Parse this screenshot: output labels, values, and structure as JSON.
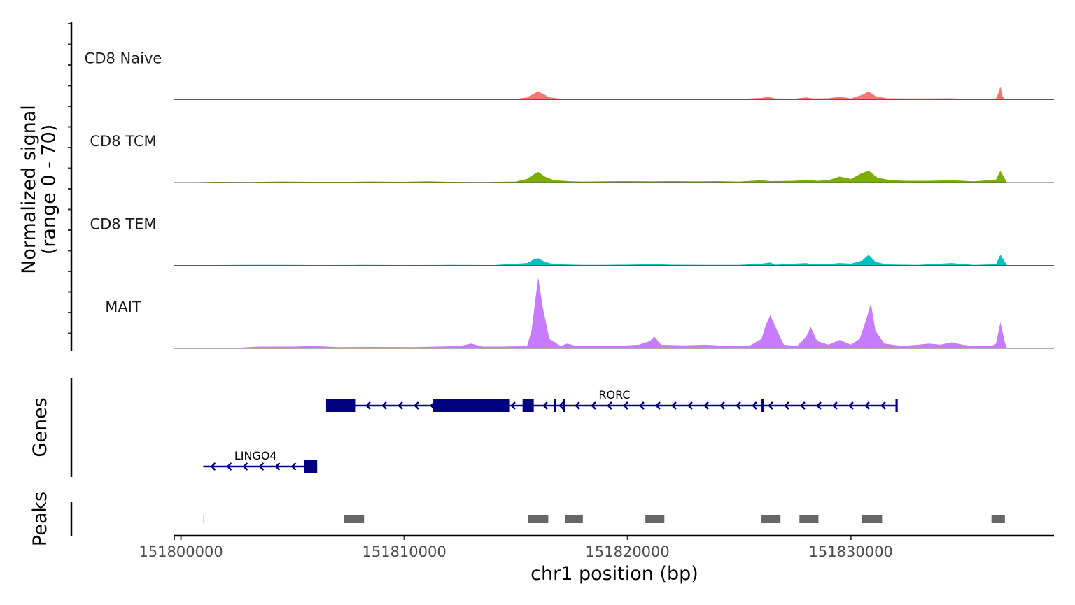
{
  "chart_data": [
    {
      "type": "area",
      "ylabel": "Normalized signal\n(range 0 - 70)",
      "ylim": [
        0,
        70
      ],
      "xlim": [
        151799700,
        151839100
      ],
      "grid": false,
      "legend": "none",
      "series": [
        {
          "name": "CD8 Naive",
          "color": "#F8766D",
          "points": [
            [
              151800000,
              0
            ],
            [
              151801500,
              0.6
            ],
            [
              151803000,
              0.4
            ],
            [
              151804500,
              0.6
            ],
            [
              151806000,
              0.5
            ],
            [
              151807500,
              0.6
            ],
            [
              151808300,
              0.8
            ],
            [
              151810000,
              0.4
            ],
            [
              151812000,
              0.5
            ],
            [
              151813500,
              0.4
            ],
            [
              151815000,
              0.6
            ],
            [
              151815500,
              2
            ],
            [
              151815800,
              5
            ],
            [
              151816000,
              7
            ],
            [
              151816200,
              5
            ],
            [
              151816500,
              2
            ],
            [
              151817000,
              0.8
            ],
            [
              151818000,
              0.6
            ],
            [
              151819000,
              0.6
            ],
            [
              151820000,
              0.8
            ],
            [
              151821000,
              0.6
            ],
            [
              151822000,
              0.6
            ],
            [
              151823000,
              0.5
            ],
            [
              151824000,
              0.6
            ],
            [
              151825000,
              0.6
            ],
            [
              151826000,
              1.5
            ],
            [
              151826300,
              2.5
            ],
            [
              151826600,
              1
            ],
            [
              151827500,
              0.8
            ],
            [
              151828000,
              2
            ],
            [
              151828300,
              1
            ],
            [
              151829000,
              1.2
            ],
            [
              151829500,
              2.5
            ],
            [
              151830000,
              1
            ],
            [
              151830500,
              4
            ],
            [
              151830800,
              7
            ],
            [
              151831100,
              3
            ],
            [
              151831600,
              1.2
            ],
            [
              151832500,
              1
            ],
            [
              151833500,
              1
            ],
            [
              151834500,
              1.2
            ],
            [
              151835500,
              0.5
            ],
            [
              151836500,
              1
            ],
            [
              151836600,
              5
            ],
            [
              151836700,
              11
            ],
            [
              151836800,
              3
            ],
            [
              151836900,
              0
            ]
          ]
        },
        {
          "name": "CD8 TCM",
          "color": "#7CAE00",
          "points": [
            [
              151800000,
              0
            ],
            [
              151801500,
              0.6
            ],
            [
              151803000,
              0.5
            ],
            [
              151804500,
              0.8
            ],
            [
              151806000,
              0.6
            ],
            [
              151807500,
              0.6
            ],
            [
              151808500,
              0.8
            ],
            [
              151810000,
              0.6
            ],
            [
              151811000,
              1
            ],
            [
              151812000,
              0.6
            ],
            [
              151813500,
              0.5
            ],
            [
              151815000,
              0.8
            ],
            [
              151815500,
              3
            ],
            [
              151815800,
              7
            ],
            [
              151816000,
              9
            ],
            [
              151816300,
              5
            ],
            [
              151816700,
              2
            ],
            [
              151817500,
              1
            ],
            [
              151818000,
              0.8
            ],
            [
              151819000,
              1
            ],
            [
              151820000,
              1.2
            ],
            [
              151821000,
              1
            ],
            [
              151822000,
              1.2
            ],
            [
              151823000,
              1
            ],
            [
              151824000,
              1.2
            ],
            [
              151825000,
              0.8
            ],
            [
              151826000,
              2
            ],
            [
              151826400,
              1.2
            ],
            [
              151827500,
              1.5
            ],
            [
              151828000,
              2.5
            ],
            [
              151828500,
              1.5
            ],
            [
              151829000,
              2
            ],
            [
              151829500,
              5
            ],
            [
              151830000,
              3
            ],
            [
              151830500,
              8
            ],
            [
              151830800,
              10
            ],
            [
              151831200,
              4
            ],
            [
              151831800,
              2
            ],
            [
              151832500,
              1.5
            ],
            [
              151833500,
              1.5
            ],
            [
              151834500,
              2
            ],
            [
              151835500,
              1
            ],
            [
              151836500,
              2.5
            ],
            [
              151836700,
              10
            ],
            [
              151836900,
              3
            ],
            [
              151837000,
              0
            ]
          ]
        },
        {
          "name": "CD8 TEM",
          "color": "#00BFC4",
          "points": [
            [
              151800000,
              0
            ],
            [
              151801500,
              0.3
            ],
            [
              151803000,
              0.5
            ],
            [
              151804500,
              0.4
            ],
            [
              151806000,
              0.3
            ],
            [
              151808000,
              0.4
            ],
            [
              151810000,
              0.3
            ],
            [
              151812000,
              0.4
            ],
            [
              151814000,
              0.3
            ],
            [
              151815500,
              2
            ],
            [
              151815800,
              5
            ],
            [
              151816000,
              6
            ],
            [
              151816300,
              3
            ],
            [
              151816700,
              1
            ],
            [
              151818000,
              0.5
            ],
            [
              151819000,
              0.4
            ],
            [
              151820500,
              0.8
            ],
            [
              151821000,
              1.2
            ],
            [
              151822000,
              0.6
            ],
            [
              151823500,
              0.5
            ],
            [
              151825000,
              0.4
            ],
            [
              151826000,
              1.5
            ],
            [
              151826400,
              2.5
            ],
            [
              151826600,
              0.6
            ],
            [
              151828000,
              2
            ],
            [
              151828300,
              0.8
            ],
            [
              151829000,
              1.2
            ],
            [
              151829500,
              2
            ],
            [
              151830000,
              1.5
            ],
            [
              151830500,
              4
            ],
            [
              151830800,
              9
            ],
            [
              151831100,
              3
            ],
            [
              151831600,
              0.8
            ],
            [
              151833000,
              0.5
            ],
            [
              151834500,
              2
            ],
            [
              151835500,
              0.4
            ],
            [
              151836500,
              1
            ],
            [
              151836700,
              9
            ],
            [
              151836900,
              3
            ],
            [
              151837000,
              0
            ]
          ]
        },
        {
          "name": "MAIT",
          "color": "#C77CFF",
          "points": [
            [
              151800000,
              0
            ],
            [
              151802500,
              0.5
            ],
            [
              151803500,
              1.5
            ],
            [
              151805000,
              1.5
            ],
            [
              151806000,
              2
            ],
            [
              151807000,
              1
            ],
            [
              151808500,
              1.2
            ],
            [
              151810500,
              1
            ],
            [
              151811500,
              1.5
            ],
            [
              151812500,
              2
            ],
            [
              151813000,
              4
            ],
            [
              151813500,
              1.5
            ],
            [
              151814500,
              1.5
            ],
            [
              151815500,
              2
            ],
            [
              151815700,
              15
            ],
            [
              151815900,
              45
            ],
            [
              151816000,
              60
            ],
            [
              151816200,
              35
            ],
            [
              151816500,
              8
            ],
            [
              151817000,
              2
            ],
            [
              151817300,
              4
            ],
            [
              151817700,
              2
            ],
            [
              151818500,
              2
            ],
            [
              151819500,
              2
            ],
            [
              151820500,
              3
            ],
            [
              151821000,
              6
            ],
            [
              151821200,
              10
            ],
            [
              151821500,
              3
            ],
            [
              151822500,
              2.5
            ],
            [
              151823500,
              3
            ],
            [
              151824500,
              2
            ],
            [
              151825500,
              2.5
            ],
            [
              151826000,
              8
            ],
            [
              151826200,
              20
            ],
            [
              151826400,
              28
            ],
            [
              151826700,
              15
            ],
            [
              151827000,
              3
            ],
            [
              151827600,
              2
            ],
            [
              151828000,
              10
            ],
            [
              151828200,
              18
            ],
            [
              151828500,
              6
            ],
            [
              151829000,
              3
            ],
            [
              151829500,
              7
            ],
            [
              151830000,
              3
            ],
            [
              151830400,
              8
            ],
            [
              151830700,
              25
            ],
            [
              151830900,
              38
            ],
            [
              151831100,
              15
            ],
            [
              151831500,
              4
            ],
            [
              151832300,
              2
            ],
            [
              151833000,
              3
            ],
            [
              151833500,
              4
            ],
            [
              151834000,
              3
            ],
            [
              151834500,
              5
            ],
            [
              151835000,
              3
            ],
            [
              151835500,
              2
            ],
            [
              151836300,
              2
            ],
            [
              151836500,
              4
            ],
            [
              151836700,
              22
            ],
            [
              151836900,
              5
            ],
            [
              151837000,
              0
            ]
          ]
        }
      ]
    },
    {
      "type": "gene-annotation",
      "ylabel": "Genes",
      "genes": [
        {
          "name": "RORC",
          "start": 151806500,
          "end": 151832100,
          "strand": "-",
          "exons": [
            [
              151806500,
              151807800
            ],
            [
              151811300,
              151814700
            ],
            [
              151815300,
              151815800
            ],
            [
              151816700,
              151816800
            ],
            [
              151817100,
              151817200
            ],
            [
              151826000,
              151826100
            ],
            [
              151832000,
              151832100
            ]
          ]
        },
        {
          "name": "LINGO4",
          "start": 151801000,
          "end": 151806100,
          "strand": "-",
          "exons": [
            [
              151805500,
              151806100
            ]
          ]
        }
      ]
    },
    {
      "type": "peaks",
      "ylabel": "Peaks",
      "peaks": [
        [
          151801000,
          151801050
        ],
        [
          151807300,
          151808200
        ],
        [
          151815550,
          151816450
        ],
        [
          151817200,
          151818000
        ],
        [
          151820800,
          151821650
        ],
        [
          151826000,
          151826850
        ],
        [
          151827700,
          151828550
        ],
        [
          151830500,
          151831400
        ],
        [
          151836300,
          151836900
        ]
      ]
    }
  ],
  "x_axis": {
    "label": "chr1 position (bp)",
    "ticks": [
      151800000,
      151810000,
      151820000,
      151830000
    ]
  }
}
